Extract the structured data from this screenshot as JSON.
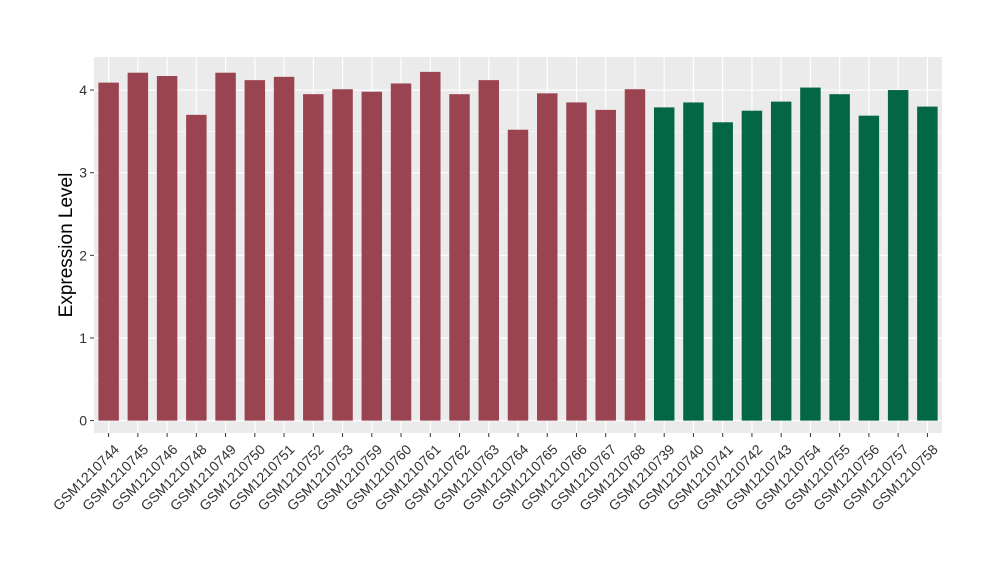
{
  "chart_data": {
    "type": "bar",
    "title": "",
    "xlabel": "",
    "ylabel": "Expression Level",
    "ylim": [
      -0.15,
      4.4
    ],
    "yticks": [
      0,
      1,
      2,
      3,
      4
    ],
    "grid": true,
    "legend": "none",
    "colors": {
      "group1": "#9B4451",
      "group2": "#036644",
      "panel_background": "#EBEBEB",
      "grid": "#FFFFFF",
      "axis_text": "#333333"
    },
    "categories": [
      "GSM1210744",
      "GSM1210745",
      "GSM1210746",
      "GSM1210748",
      "GSM1210749",
      "GSM1210750",
      "GSM1210751",
      "GSM1210752",
      "GSM1210753",
      "GSM1210759",
      "GSM1210760",
      "GSM1210761",
      "GSM1210762",
      "GSM1210763",
      "GSM1210764",
      "GSM1210765",
      "GSM1210766",
      "GSM1210767",
      "GSM1210768",
      "GSM1210739",
      "GSM1210740",
      "GSM1210741",
      "GSM1210742",
      "GSM1210743",
      "GSM1210754",
      "GSM1210755",
      "GSM1210756",
      "GSM1210757",
      "GSM1210758"
    ],
    "values": [
      4.09,
      4.21,
      4.17,
      3.7,
      4.21,
      4.12,
      4.16,
      3.95,
      4.01,
      3.98,
      4.08,
      4.22,
      3.95,
      4.12,
      3.52,
      3.96,
      3.85,
      3.76,
      4.01,
      3.79,
      3.85,
      3.61,
      3.75,
      3.86,
      4.03,
      3.95,
      3.69,
      4.0,
      3.8
    ],
    "groups": [
      "group1",
      "group1",
      "group1",
      "group1",
      "group1",
      "group1",
      "group1",
      "group1",
      "group1",
      "group1",
      "group1",
      "group1",
      "group1",
      "group1",
      "group1",
      "group1",
      "group1",
      "group1",
      "group1",
      "group2",
      "group2",
      "group2",
      "group2",
      "group2",
      "group2",
      "group2",
      "group2",
      "group2",
      "group2"
    ]
  }
}
